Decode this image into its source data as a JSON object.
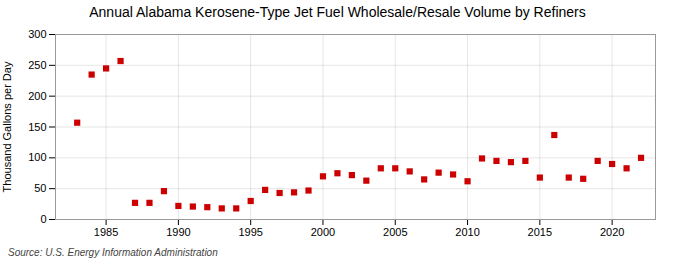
{
  "chart_data": {
    "type": "scatter",
    "title": "Annual Alabama Kerosene-Type Jet Fuel Wholesale/Resale Volume by Refiners",
    "ylabel": "Thousand Gallons per Day",
    "source": "Source: U.S. Energy Information Administration",
    "x": [
      1983,
      1984,
      1985,
      1986,
      1987,
      1988,
      1989,
      1990,
      1991,
      1992,
      1993,
      1994,
      1995,
      1996,
      1997,
      1998,
      1999,
      2000,
      2001,
      2002,
      2003,
      2004,
      2005,
      2006,
      2007,
      2008,
      2009,
      2010,
      2011,
      2012,
      2013,
      2014,
      2015,
      2016,
      2017,
      2018,
      2019,
      2020,
      2021,
      2022
    ],
    "values": [
      157,
      235,
      245,
      257,
      27,
      27,
      46,
      22,
      21,
      20,
      18,
      18,
      30,
      48,
      43,
      44,
      47,
      70,
      75,
      72,
      63,
      83,
      83,
      78,
      65,
      76,
      73,
      62,
      99,
      95,
      93,
      95,
      68,
      137,
      68,
      66,
      95,
      90,
      83,
      100
    ],
    "color": "#cc0000",
    "marker": "square",
    "xlim": [
      1981.5,
      2023
    ],
    "xticks": [
      1985,
      1990,
      1995,
      2000,
      2005,
      2010,
      2015,
      2020
    ],
    "ylim": [
      0,
      300
    ],
    "yticks": [
      0,
      50,
      100,
      150,
      200,
      250,
      300
    ],
    "grid": true
  }
}
